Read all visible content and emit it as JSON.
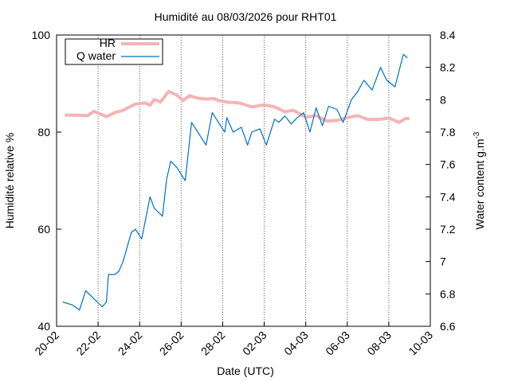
{
  "chart_data": {
    "type": "line",
    "title": "Humidité au 08/03/2026 pour RHT01",
    "xlabel": "Date (UTC)",
    "ylabel": "Humidité relative %",
    "y2label": "Water content g.m",
    "y2label_sup": "-3",
    "x_ticks": [
      "20-02",
      "22-02",
      "24-02",
      "26-02",
      "28-02",
      "02-03",
      "04-03",
      "06-03",
      "08-03",
      "10-03"
    ],
    "xlim_days": [
      0,
      18
    ],
    "ylim": [
      40,
      100
    ],
    "yticks": [
      40,
      60,
      80,
      100
    ],
    "y2lim": [
      6.6,
      8.4
    ],
    "y2ticks": [
      "6.6",
      "6.8",
      "7",
      "7.2",
      "7.4",
      "7.6",
      "7.8",
      "8",
      "8.2",
      "8.4"
    ],
    "grid": "vertical dotted",
    "legend_position": "top-left",
    "series": [
      {
        "name": "HR",
        "axis": "left",
        "color": "#f4b4b4",
        "x": [
          0.4,
          1.0,
          1.5,
          1.8,
          2.4,
          2.8,
          3.2,
          3.8,
          4.3,
          4.5,
          4.7,
          5.0,
          5.4,
          5.8,
          6.1,
          6.4,
          6.8,
          7.2,
          7.6,
          7.8,
          8.2,
          8.8,
          9.4,
          10.0,
          10.5,
          11.0,
          11.4,
          12.0,
          12.5,
          13.0,
          13.5,
          14.0,
          14.5,
          15.0,
          15.5,
          16.0,
          16.5,
          16.8,
          17.0
        ],
        "values": [
          83.5,
          83.5,
          83.4,
          84.3,
          83.2,
          84.0,
          84.5,
          85.8,
          86.0,
          85.5,
          86.7,
          86.2,
          88.4,
          87.6,
          86.5,
          87.5,
          87.0,
          86.8,
          86.9,
          86.5,
          86.2,
          86.0,
          85.2,
          85.6,
          85.2,
          84.2,
          84.5,
          83.1,
          83.4,
          82.3,
          82.4,
          83.0,
          83.4,
          82.6,
          82.6,
          82.9,
          82.0,
          82.8,
          82.8
        ]
      },
      {
        "name": "Q water",
        "axis": "right",
        "color": "#0072bd",
        "x": [
          0.3,
          0.8,
          1.1,
          1.4,
          1.8,
          2.2,
          2.4,
          2.5,
          2.8,
          3.0,
          3.2,
          3.6,
          3.8,
          4.1,
          4.5,
          4.7,
          5.1,
          5.3,
          5.5,
          5.8,
          6.2,
          6.5,
          6.8,
          7.2,
          7.5,
          7.9,
          8.1,
          8.2,
          8.5,
          8.9,
          9.2,
          9.4,
          9.8,
          10.1,
          10.5,
          10.7,
          11.0,
          11.3,
          11.6,
          11.9,
          12.2,
          12.5,
          12.8,
          13.1,
          13.5,
          13.8,
          14.2,
          14.5,
          14.8,
          15.2,
          15.6,
          15.9,
          16.3,
          16.7,
          16.9
        ],
        "values": [
          6.75,
          6.73,
          6.7,
          6.82,
          6.77,
          6.72,
          6.75,
          6.92,
          6.92,
          6.94,
          7.0,
          7.18,
          7.2,
          7.14,
          7.4,
          7.33,
          7.28,
          7.51,
          7.62,
          7.58,
          7.5,
          7.86,
          7.8,
          7.72,
          7.92,
          7.84,
          7.8,
          7.89,
          7.8,
          7.83,
          7.72,
          7.8,
          7.82,
          7.72,
          7.88,
          7.86,
          7.9,
          7.85,
          7.89,
          7.92,
          7.8,
          7.95,
          7.84,
          7.96,
          7.94,
          7.86,
          8.0,
          8.05,
          8.12,
          8.06,
          8.2,
          8.12,
          8.08,
          8.28,
          8.26
        ]
      }
    ]
  }
}
